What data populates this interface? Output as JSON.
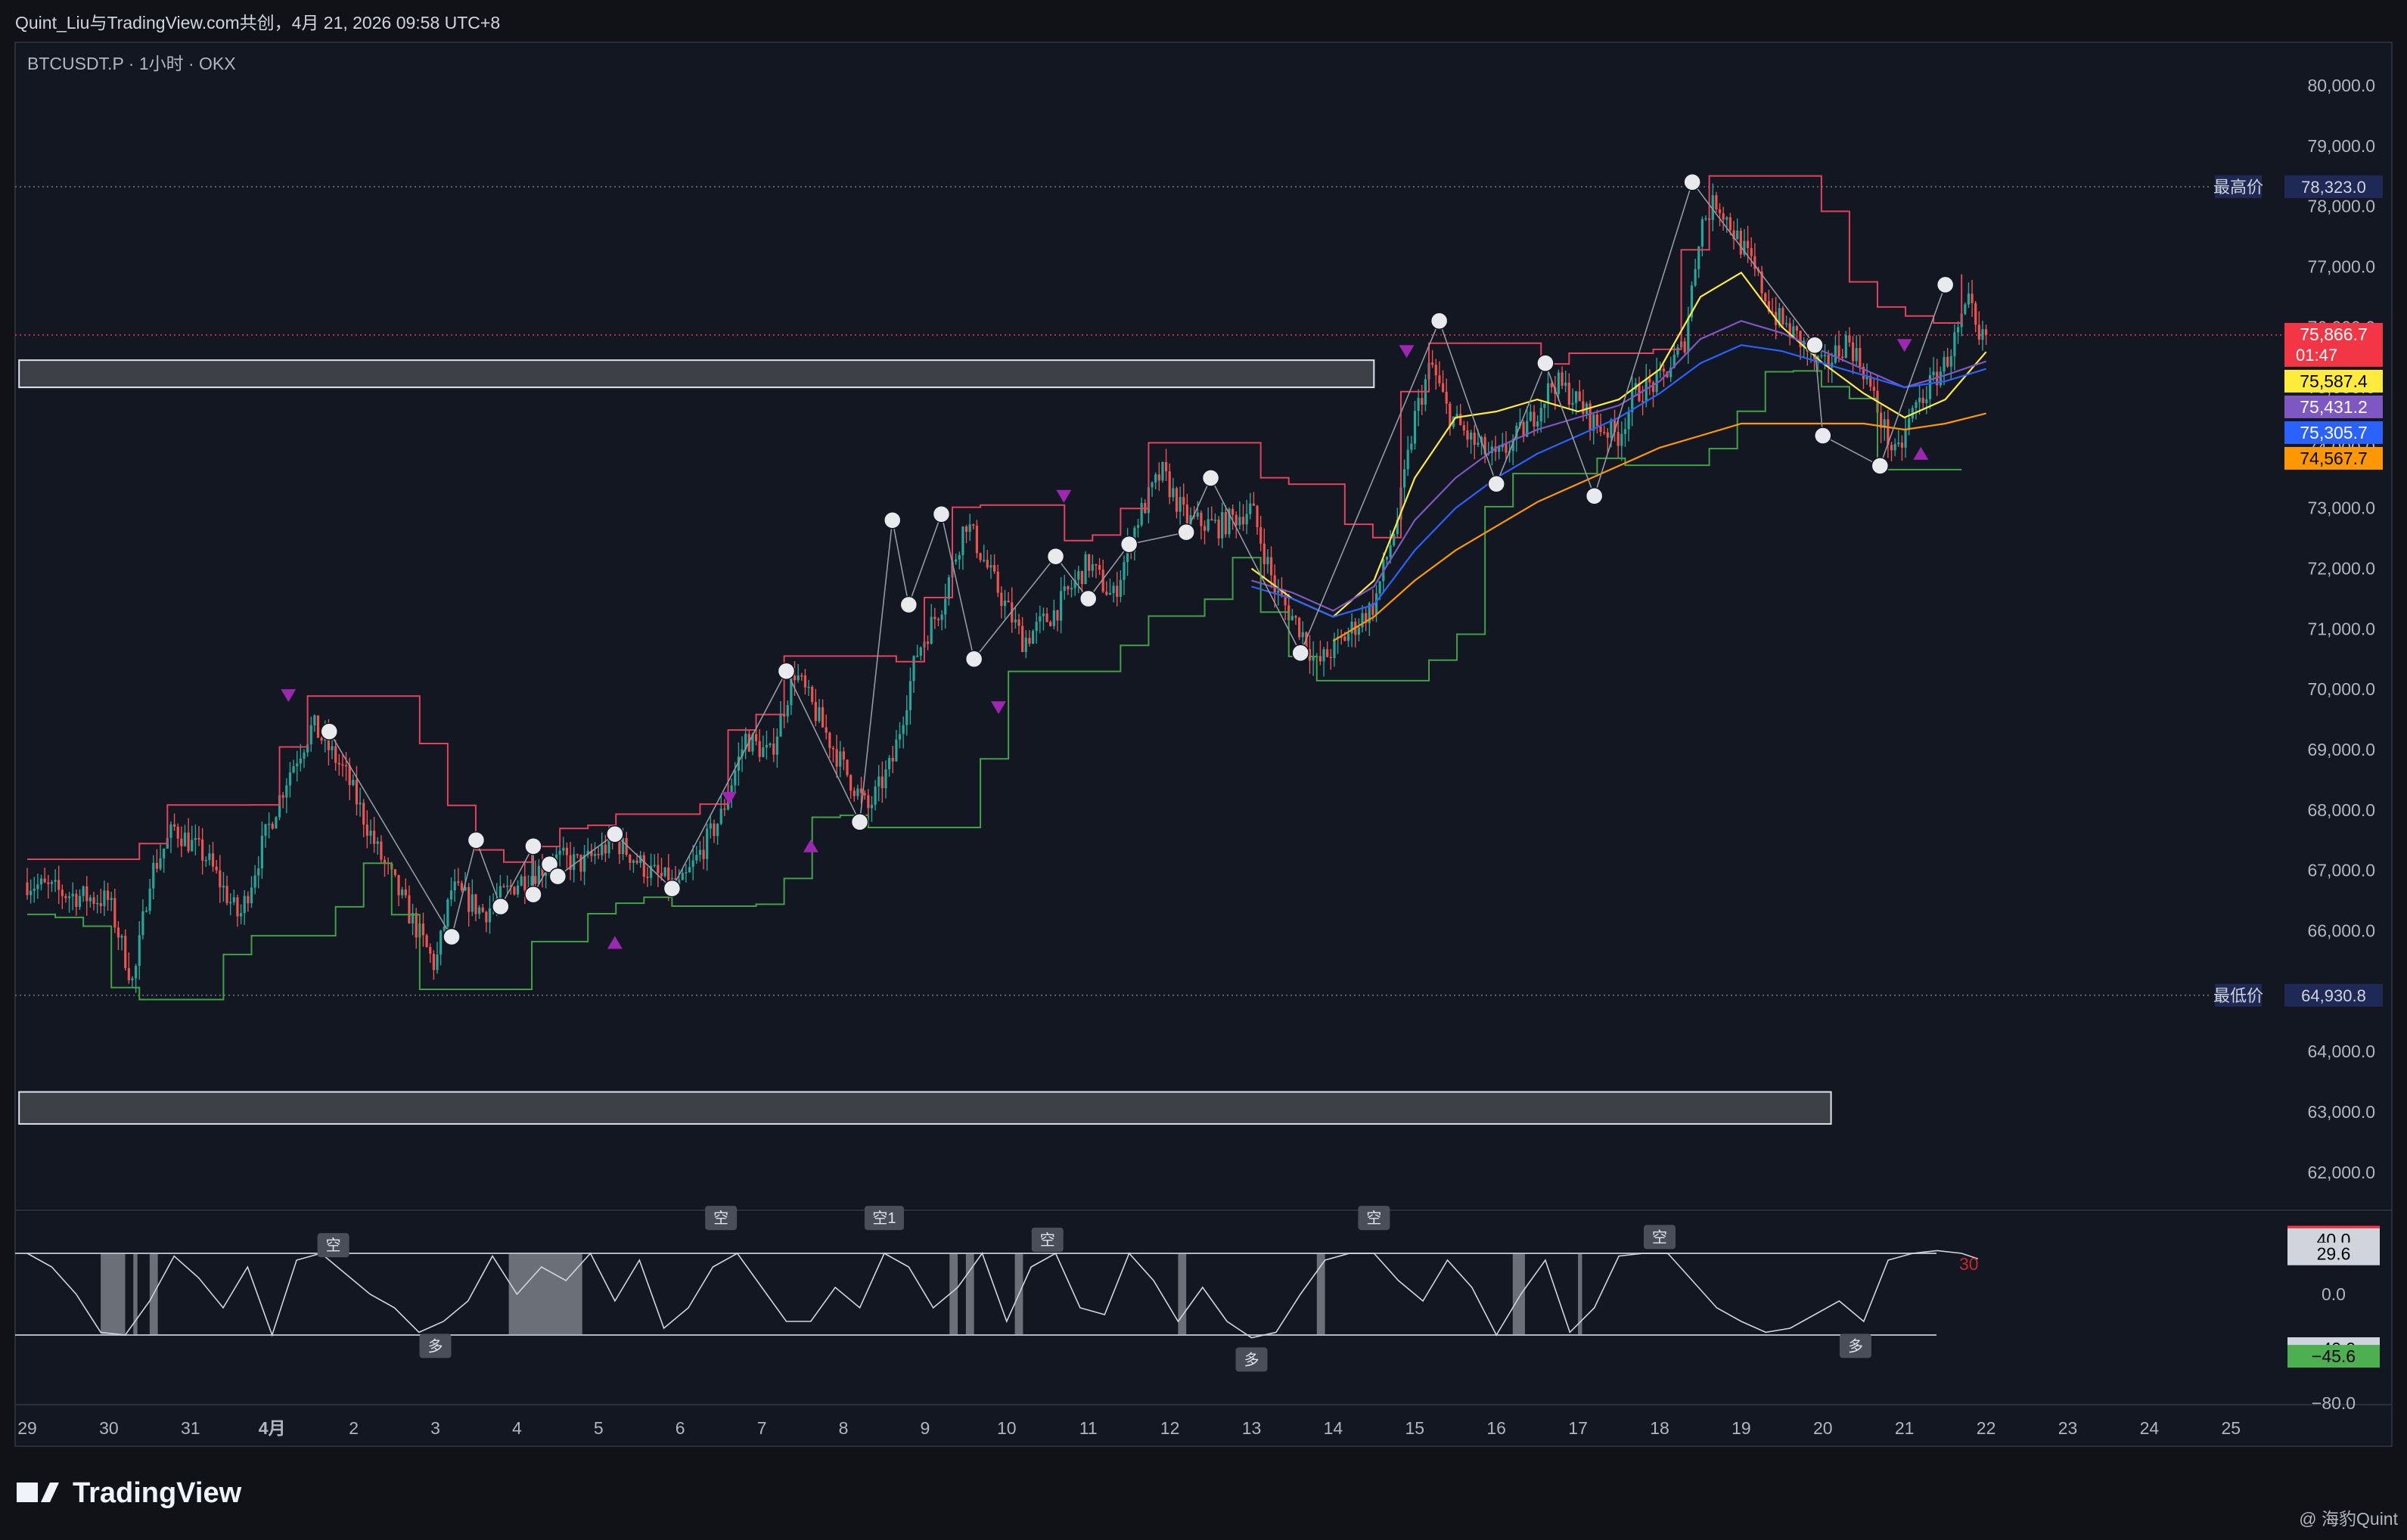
{
  "header": {
    "credit": "Quint_Liu与TradingView.com共创，4月 21, 2026 09:58 UTC+8"
  },
  "chart_info": {
    "symbol_line": "BTCUSDT.P · 1小时 · OKX"
  },
  "footer": {
    "brand": "TradingView",
    "watermark": "@ 海豹Quint"
  },
  "colors": {
    "background": "#131722",
    "up": "#26a69a",
    "down": "#ef5350",
    "ma_yellow": "#ffeb3b",
    "ma_purple": "#7e57c2",
    "ma_blue": "#2962ff",
    "ma_orange": "#ff9800",
    "upper_band": "#e0435a",
    "lower_band": "#43a047",
    "signal_marker": "#9c27b0"
  },
  "chart_data": {
    "type": "candlestick",
    "symbol": "BTCUSDT.P",
    "interval": "1小时",
    "exchange": "OKX",
    "x_labels": [
      "29",
      "30",
      "31",
      "4月",
      "2",
      "3",
      "4",
      "5",
      "6",
      "7",
      "8",
      "9",
      "10",
      "11",
      "12",
      "13",
      "14",
      "15",
      "16",
      "17",
      "18",
      "19",
      "20",
      "21",
      "22",
      "23",
      "24",
      "25"
    ],
    "y_ticks": [
      "80,000.0",
      "79,000.0",
      "78,000.0",
      "77,000.0",
      "76,000.0",
      "75,000.0",
      "74,000.0",
      "73,000.0",
      "72,000.0",
      "71,000.0",
      "70,000.0",
      "69,000.0",
      "68,000.0",
      "67,000.0",
      "66,000.0",
      "65,000.0",
      "64,000.0",
      "63,000.0",
      "62,000.0"
    ],
    "y_range": [
      61500,
      80300
    ],
    "grid": false,
    "close_path": [
      [
        0,
        66800
      ],
      [
        0.5,
        66600
      ],
      [
        1,
        66500
      ],
      [
        1.3,
        65100
      ],
      [
        1.5,
        66900
      ],
      [
        1.8,
        67700
      ],
      [
        2.2,
        67200
      ],
      [
        2.6,
        66200
      ],
      [
        2.9,
        67500
      ],
      [
        3.2,
        68600
      ],
      [
        3.5,
        69400
      ],
      [
        3.9,
        68600
      ],
      [
        4.3,
        67300
      ],
      [
        4.6,
        66500
      ],
      [
        5,
        65400
      ],
      [
        5.2,
        66700
      ],
      [
        5.6,
        66300
      ],
      [
        6,
        66800
      ],
      [
        6.5,
        67200
      ],
      [
        6.8,
        67100
      ],
      [
        7.2,
        67500
      ],
      [
        7.6,
        67000
      ],
      [
        8,
        66700
      ],
      [
        8.5,
        67900
      ],
      [
        8.8,
        69200
      ],
      [
        9.1,
        68900
      ],
      [
        9.4,
        70300
      ],
      [
        9.7,
        69500
      ],
      [
        10,
        68700
      ],
      [
        10.3,
        68000
      ],
      [
        10.6,
        68800
      ],
      [
        10.9,
        70600
      ],
      [
        11.2,
        71400
      ],
      [
        11.5,
        72800
      ],
      [
        11.8,
        71900
      ],
      [
        12.2,
        70800
      ],
      [
        12.6,
        71300
      ],
      [
        13,
        72100
      ],
      [
        13.3,
        71500
      ],
      [
        13.6,
        72800
      ],
      [
        13.9,
        73600
      ],
      [
        14.2,
        72800
      ],
      [
        14.6,
        72700
      ],
      [
        15,
        73000
      ],
      [
        15.3,
        71600
      ],
      [
        15.6,
        71000
      ],
      [
        15.8,
        70400
      ],
      [
        16.1,
        70800
      ],
      [
        16.5,
        71400
      ],
      [
        16.8,
        72900
      ],
      [
        17,
        74500
      ],
      [
        17.2,
        75400
      ],
      [
        17.4,
        74600
      ],
      [
        17.7,
        74100
      ],
      [
        18,
        73800
      ],
      [
        18.4,
        74400
      ],
      [
        18.7,
        75100
      ],
      [
        18.9,
        74900
      ],
      [
        19.2,
        74400
      ],
      [
        19.5,
        74200
      ],
      [
        19.7,
        74900
      ],
      [
        20,
        75100
      ],
      [
        20.3,
        75700
      ],
      [
        20.5,
        77700
      ],
      [
        20.7,
        78100
      ],
      [
        20.9,
        77600
      ],
      [
        21.1,
        77100
      ],
      [
        21.4,
        76200
      ],
      [
        21.7,
        75800
      ],
      [
        22,
        75300
      ],
      [
        22.3,
        75800
      ],
      [
        22.5,
        75300
      ],
      [
        22.7,
        74500
      ],
      [
        22.9,
        73800
      ],
      [
        23.1,
        74600
      ],
      [
        23.3,
        75000
      ],
      [
        23.5,
        75400
      ],
      [
        23.8,
        76400
      ],
      [
        23.9,
        75700
      ],
      [
        24,
        75867
      ]
    ],
    "ma_lines": [
      {
        "name": "MA-yellow",
        "color": "#ffeb3b",
        "last": 75587.4,
        "points": [
          [
            15,
            72000
          ],
          [
            15.5,
            71500
          ],
          [
            16,
            71200
          ],
          [
            16.5,
            71800
          ],
          [
            17,
            73500
          ],
          [
            17.5,
            74500
          ],
          [
            18,
            74600
          ],
          [
            18.5,
            74800
          ],
          [
            19,
            74600
          ],
          [
            19.5,
            74800
          ],
          [
            20,
            75300
          ],
          [
            20.5,
            76500
          ],
          [
            21,
            76900
          ],
          [
            21.5,
            76000
          ],
          [
            22,
            75400
          ],
          [
            22.5,
            74900
          ],
          [
            23,
            74500
          ],
          [
            23.5,
            74800
          ],
          [
            24,
            75587
          ]
        ]
      },
      {
        "name": "MA-purple",
        "color": "#7e57c2",
        "last": 75431.2,
        "points": [
          [
            15,
            71800
          ],
          [
            15.5,
            71600
          ],
          [
            16,
            71300
          ],
          [
            16.5,
            71700
          ],
          [
            17,
            72800
          ],
          [
            17.5,
            73500
          ],
          [
            18,
            74000
          ],
          [
            18.5,
            74300
          ],
          [
            19,
            74500
          ],
          [
            19.5,
            74700
          ],
          [
            20,
            75100
          ],
          [
            20.5,
            75800
          ],
          [
            21,
            76100
          ],
          [
            21.5,
            75900
          ],
          [
            22,
            75600
          ],
          [
            22.5,
            75300
          ],
          [
            23,
            75000
          ],
          [
            23.5,
            75200
          ],
          [
            24,
            75431
          ]
        ]
      },
      {
        "name": "MA-blue",
        "color": "#2962ff",
        "last": 75305.7,
        "points": [
          [
            15,
            71700
          ],
          [
            15.5,
            71500
          ],
          [
            16,
            71200
          ],
          [
            16.5,
            71400
          ],
          [
            17,
            72300
          ],
          [
            17.5,
            73000
          ],
          [
            18,
            73500
          ],
          [
            18.5,
            73900
          ],
          [
            19,
            74200
          ],
          [
            19.5,
            74500
          ],
          [
            20,
            74900
          ],
          [
            20.5,
            75400
          ],
          [
            21,
            75700
          ],
          [
            21.5,
            75600
          ],
          [
            22,
            75400
          ],
          [
            22.5,
            75200
          ],
          [
            23,
            75000
          ],
          [
            23.5,
            75100
          ],
          [
            24,
            75306
          ]
        ]
      },
      {
        "name": "MA-orange",
        "color": "#ff9800",
        "last": 74567.7,
        "points": [
          [
            16,
            70800
          ],
          [
            16.5,
            71200
          ],
          [
            17,
            71800
          ],
          [
            17.5,
            72300
          ],
          [
            18,
            72700
          ],
          [
            18.5,
            73100
          ],
          [
            19,
            73400
          ],
          [
            19.5,
            73700
          ],
          [
            20,
            74000
          ],
          [
            20.5,
            74200
          ],
          [
            21,
            74400
          ],
          [
            21.5,
            74400
          ],
          [
            22,
            74400
          ],
          [
            22.5,
            74400
          ],
          [
            23,
            74300
          ],
          [
            23.5,
            74400
          ],
          [
            24,
            74568
          ]
        ]
      }
    ],
    "price_labels": [
      {
        "text": "75,866.7",
        "sub": "01:47",
        "value": 75866.7,
        "color": "#f23645"
      },
      {
        "text": "75,587.4",
        "value": 75587.4,
        "color": "#ffeb3b",
        "text_color": "#000000"
      },
      {
        "text": "75,431.2",
        "value": 75431.2,
        "color": "#7e57c2"
      },
      {
        "text": "75,305.7",
        "value": 75305.7,
        "color": "#2962ff"
      },
      {
        "text": "74,567.7",
        "value": 74567.7,
        "color": "#ff9800",
        "text_color": "#000000"
      }
    ],
    "high_line": {
      "label": "最高价",
      "text": "78,323.0",
      "value": 78323.0
    },
    "low_line": {
      "label": "最低价",
      "text": "64,930.8",
      "value": 64930.8
    },
    "zones": [
      {
        "x0": -0.1,
        "x1": 16.5,
        "low": 75000,
        "high": 75450
      },
      {
        "x0": -0.1,
        "x1": 22.1,
        "low": 62800,
        "high": 63330
      }
    ],
    "swing_points": [
      [
        3.7,
        69300
      ],
      [
        5.2,
        65900
      ],
      [
        5.5,
        67500
      ],
      [
        5.8,
        66400
      ],
      [
        6.2,
        67400
      ],
      [
        6.2,
        66600
      ],
      [
        6.4,
        67100
      ],
      [
        6.5,
        66900
      ],
      [
        7.2,
        67600
      ],
      [
        7.9,
        66700
      ],
      [
        9.3,
        70300
      ],
      [
        10.2,
        67800
      ],
      [
        10.6,
        72800
      ],
      [
        10.8,
        71400
      ],
      [
        11.2,
        72900
      ],
      [
        11.6,
        70500
      ],
      [
        12.6,
        72200
      ],
      [
        13,
        71500
      ],
      [
        13.5,
        72400
      ],
      [
        14.2,
        72600
      ],
      [
        14.5,
        73500
      ],
      [
        15.6,
        70600
      ],
      [
        17.3,
        76100
      ],
      [
        18,
        73400
      ],
      [
        18.6,
        75400
      ],
      [
        19.2,
        73200
      ],
      [
        20.4,
        78400
      ],
      [
        21.9,
        75700
      ],
      [
        22,
        74200
      ],
      [
        22.7,
        73700
      ],
      [
        23.5,
        76700
      ]
    ],
    "triangles_down": [
      [
        3.2,
        69900
      ],
      [
        8.6,
        68200
      ],
      [
        11.9,
        69700
      ],
      [
        12.7,
        73200
      ],
      [
        16.9,
        75600
      ],
      [
        23,
        75700
      ]
    ],
    "triangles_up": [
      [
        7.2,
        65800
      ],
      [
        9.6,
        67400
      ],
      [
        23.2,
        73900
      ]
    ],
    "oscillator": {
      "range": [
        -80,
        60
      ],
      "y_ticks": [
        "0.0",
        "−80.0"
      ],
      "ref_levels": [
        30,
        -30
      ],
      "level_label": "30",
      "value_labels": [
        {
          "text": "41.9",
          "value": 41.9,
          "color": "#f23645"
        },
        {
          "text": "40.0",
          "value": 40,
          "color": "#d1d4dc",
          "text_color": "#000000"
        },
        {
          "text": "29.6",
          "value": 29.6,
          "color": "#d1d4dc",
          "text_color": "#000000"
        },
        {
          "text": "−40.0",
          "value": -40,
          "color": "#d1d4dc",
          "text_color": "#000000"
        },
        {
          "text": "−45.6",
          "value": -45.6,
          "color": "#4caf50",
          "text_color": "#000000"
        }
      ],
      "tags": [
        {
          "text": "空",
          "x": 3.75,
          "value": 36
        },
        {
          "text": "多",
          "x": 5.0,
          "value": -38
        },
        {
          "text": "空",
          "x": 8.5,
          "value": 56
        },
        {
          "text": "空1",
          "x": 10.5,
          "value": 56
        },
        {
          "text": "空",
          "x": 12.5,
          "value": 40
        },
        {
          "text": "多",
          "x": 15.0,
          "value": -48
        },
        {
          "text": "空",
          "x": 16.5,
          "value": 56
        },
        {
          "text": "空",
          "x": 20.0,
          "value": 42
        },
        {
          "text": "多",
          "x": 22.4,
          "value": -38
        }
      ],
      "shaded": [
        [
          0.9,
          1.2
        ],
        [
          1.3,
          1.35
        ],
        [
          1.5,
          1.6
        ],
        [
          5.9,
          6.8
        ],
        [
          11.3,
          11.4
        ],
        [
          11.5,
          11.6
        ],
        [
          12.1,
          12.2
        ],
        [
          14.1,
          14.2
        ],
        [
          15.8,
          15.9
        ],
        [
          18.2,
          18.35
        ],
        [
          19.0,
          19.05
        ]
      ],
      "series": [
        [
          0,
          30
        ],
        [
          0.3,
          20
        ],
        [
          0.6,
          0
        ],
        [
          0.9,
          -28
        ],
        [
          1.2,
          -30
        ],
        [
          1.5,
          -5
        ],
        [
          1.8,
          28
        ],
        [
          2.1,
          12
        ],
        [
          2.4,
          -10
        ],
        [
          2.7,
          20
        ],
        [
          3,
          -30
        ],
        [
          3.3,
          25
        ],
        [
          3.6,
          30
        ],
        [
          3.9,
          15
        ],
        [
          4.2,
          0
        ],
        [
          4.5,
          -10
        ],
        [
          4.8,
          -28
        ],
        [
          5.1,
          -20
        ],
        [
          5.4,
          -5
        ],
        [
          5.7,
          28
        ],
        [
          6,
          0
        ],
        [
          6.3,
          20
        ],
        [
          6.6,
          10
        ],
        [
          6.9,
          30
        ],
        [
          7.2,
          -5
        ],
        [
          7.5,
          25
        ],
        [
          7.8,
          -25
        ],
        [
          8.1,
          -10
        ],
        [
          8.4,
          20
        ],
        [
          8.7,
          30
        ],
        [
          9,
          5
        ],
        [
          9.3,
          -20
        ],
        [
          9.6,
          -20
        ],
        [
          9.9,
          5
        ],
        [
          10.2,
          -10
        ],
        [
          10.5,
          30
        ],
        [
          10.8,
          20
        ],
        [
          11.1,
          -10
        ],
        [
          11.4,
          5
        ],
        [
          11.7,
          30
        ],
        [
          12,
          -20
        ],
        [
          12.3,
          20
        ],
        [
          12.6,
          30
        ],
        [
          12.9,
          -10
        ],
        [
          13.2,
          -15
        ],
        [
          13.5,
          30
        ],
        [
          13.8,
          10
        ],
        [
          14.1,
          -20
        ],
        [
          14.4,
          5
        ],
        [
          14.7,
          -20
        ],
        [
          15,
          -32
        ],
        [
          15.3,
          -28
        ],
        [
          15.6,
          0
        ],
        [
          15.9,
          25
        ],
        [
          16.2,
          30
        ],
        [
          16.5,
          30
        ],
        [
          16.8,
          10
        ],
        [
          17.1,
          -5
        ],
        [
          17.4,
          25
        ],
        [
          17.7,
          5
        ],
        [
          18,
          -30
        ],
        [
          18.3,
          0
        ],
        [
          18.6,
          25
        ],
        [
          18.9,
          -28
        ],
        [
          19.2,
          -10
        ],
        [
          19.5,
          28
        ],
        [
          19.8,
          30
        ],
        [
          20.1,
          30
        ],
        [
          20.4,
          10
        ],
        [
          20.7,
          -10
        ],
        [
          21,
          -20
        ],
        [
          21.3,
          -28
        ],
        [
          21.6,
          -25
        ],
        [
          21.9,
          -15
        ],
        [
          22.2,
          -5
        ],
        [
          22.5,
          -20
        ],
        [
          22.8,
          25
        ],
        [
          23.1,
          30
        ],
        [
          23.4,
          32
        ],
        [
          23.7,
          30
        ],
        [
          23.9,
          26
        ]
      ]
    }
  }
}
